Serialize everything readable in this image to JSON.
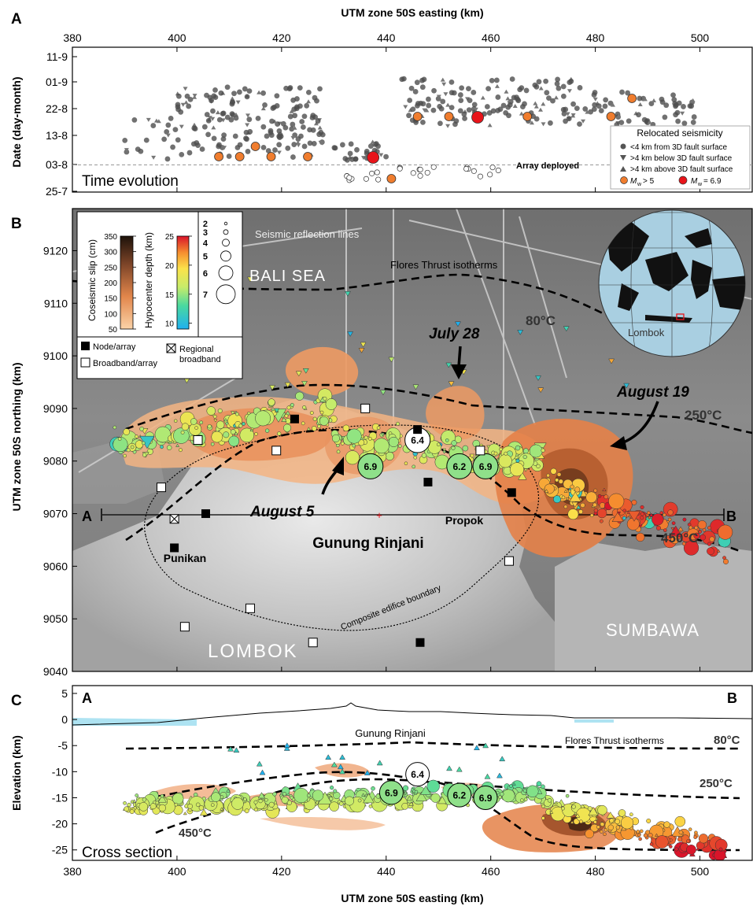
{
  "panel_labels": [
    "A",
    "B",
    "C"
  ],
  "axes": {
    "top_easting_label": "UTM zone 50S easting (km)",
    "bottom_easting_label": "UTM zone 50S easting (km)",
    "easting_ticks": [
      "380",
      "400",
      "420",
      "440",
      "460",
      "480",
      "500"
    ],
    "date_label": "Date (day-month)",
    "date_ticks": [
      "11-9",
      "01-9",
      "22-8",
      "13-8",
      "03-8",
      "25-7"
    ],
    "northing_label": "UTM zone 50S northing (km)",
    "northing_ticks": [
      "9120",
      "9110",
      "9100",
      "9090",
      "9080",
      "9070",
      "9060",
      "9050",
      "9040"
    ],
    "elevation_label": "Elevation (km)",
    "elevation_ticks": [
      "5",
      "0",
      "-5",
      "-10",
      "-15",
      "-20",
      "-25"
    ]
  },
  "panel_a": {
    "corner_title": "Time evolution",
    "array_note": "Array deployed",
    "legend": {
      "title": "Relocated seismicity",
      "items": [
        "<4 km from 3D fault surface",
        ">4 km below 3D fault surface",
        ">4 km above 3D fault surface",
        "M",
        "M"
      ],
      "sub": [
        "w",
        "w"
      ],
      "suffix": [
        "> 5",
        "= 6.9"
      ]
    }
  },
  "panel_b": {
    "labels": {
      "bali_sea": "BALI SEA",
      "lombok": "LOMBOK",
      "sumbawa": "SUMBAWA",
      "rinjani": "Gunung Rinjani",
      "punikan": "Punikan",
      "propok": "Propok",
      "seismic_lines": "Seismic reflection lines",
      "flores_isotherms": "Flores Thrust isotherms",
      "edifice": "Composite edifice boundary",
      "july28": "July 28",
      "aug5": "August 5",
      "aug19": "August 19",
      "iso80": "80°C",
      "iso250": "250°C",
      "iso450": "450°C",
      "a_mark": "A",
      "b_mark": "B",
      "inset_label": "Lombok"
    },
    "event_labels": [
      "6.4",
      "6.9",
      "6.2",
      "6.9"
    ],
    "legend": {
      "slip_label": "Coseismic slip (cm)",
      "slip_ticks": [
        "350",
        "300",
        "250",
        "200",
        "150",
        "100",
        "50"
      ],
      "depth_label": "Hypocenter depth (km)",
      "depth_ticks": [
        "25",
        "20",
        "15",
        "10"
      ],
      "mag_ticks": [
        "2",
        "3",
        "4",
        "5",
        "6",
        "7"
      ],
      "node": "Node/array",
      "broadband": "Broadband/array",
      "regional_1": "Regional",
      "regional_2": "broadband"
    },
    "colors": {
      "slip_low": "#f9c89b",
      "slip_high": "#1e120a",
      "depth_shallow": "#1fb0f0",
      "depth_deep": "#e8232d"
    }
  },
  "panel_c": {
    "corner_title": "Cross section",
    "a_end": "A",
    "b_end": "B",
    "rinjani": "Gunung Rinjani",
    "isotherm_label": "Flores Thrust isotherms",
    "iso80": "80°C",
    "iso250": "250°C",
    "iso450": "450°C",
    "event_labels": [
      "6.9",
      "6.4",
      "6.2",
      "6.9"
    ]
  },
  "chart_data": [
    {
      "type": "scatter",
      "panel": "A",
      "xlabel": "UTM zone 50S easting (km)",
      "ylabel": "Date (day-month)",
      "xlim": [
        380,
        510
      ],
      "y_ticks": [
        "25-7",
        "03-8",
        "13-8",
        "22-8",
        "01-9",
        "11-9"
      ],
      "series": [
        {
          "name": "Mw = 6.9",
          "points": [
            [
              437.5,
              "05-8"
            ],
            [
              457.5,
              "19-8"
            ]
          ]
        },
        {
          "name": "Mw > 5",
          "points": [
            [
              408,
              "05-8"
            ],
            [
              412,
              "05-8"
            ],
            [
              415,
              "09-8"
            ],
            [
              418,
              "05-8"
            ],
            [
              425,
              "05-8"
            ],
            [
              446,
              "19-8"
            ],
            [
              452,
              "19-8"
            ],
            [
              467,
              "19-8"
            ],
            [
              483,
              "19-8"
            ],
            [
              487,
              "24-8"
            ],
            [
              441,
              "28-7"
            ]
          ]
        }
      ],
      "annotation": "Array deployed (≈03-8)"
    },
    {
      "type": "scatter",
      "panel": "B",
      "xlabel": "UTM zone 50S easting (km)",
      "ylabel": "UTM zone 50S northing (km)",
      "xlim": [
        380,
        510
      ],
      "ylim": [
        9040,
        9128
      ],
      "mainshocks": [
        {
          "label": "6.4",
          "x": 446,
          "y": 9084
        },
        {
          "label": "6.9",
          "x": 437,
          "y": 9079
        },
        {
          "label": "6.2",
          "x": 454,
          "y": 9079
        },
        {
          "label": "6.9",
          "x": 459,
          "y": 9079
        }
      ],
      "stations": {
        "node": [
          [
            405.5,
            9070
          ],
          [
            399.5,
            9063.5
          ],
          [
            422.5,
            9088
          ],
          [
            446,
            9086
          ],
          [
            448,
            9076
          ],
          [
            464,
            9074
          ],
          [
            446.5,
            9045.5
          ]
        ],
        "broadband": [
          [
            397,
            9075
          ],
          [
            404,
            9084
          ],
          [
            419,
            9082
          ],
          [
            436,
            9090
          ],
          [
            458,
            9082
          ],
          [
            463.5,
            9061
          ],
          [
            414,
            9052
          ],
          [
            401.5,
            9048.5
          ],
          [
            426,
            9045.5
          ]
        ],
        "regional": [
          [
            399.5,
            9069
          ]
        ]
      }
    },
    {
      "type": "scatter",
      "panel": "C",
      "xlabel": "UTM zone 50S easting (km)",
      "ylabel": "Elevation (km)",
      "xlim": [
        380,
        510
      ],
      "ylim": [
        -27,
        6.5
      ],
      "mainshocks": [
        {
          "label": "6.9",
          "x": 441,
          "y": -14
        },
        {
          "label": "6.4",
          "x": 446,
          "y": -10.5
        },
        {
          "label": "6.2",
          "x": 454,
          "y": -14.5
        },
        {
          "label": "6.9",
          "x": 459,
          "y": -15
        }
      ]
    }
  ]
}
